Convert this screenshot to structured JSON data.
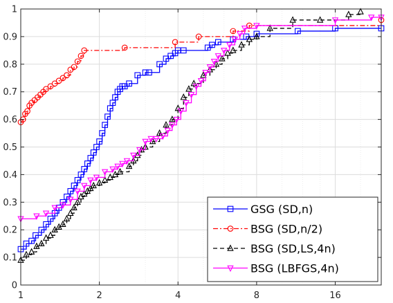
{
  "chart_data": {
    "type": "line",
    "title": "",
    "xlabel": "",
    "ylabel": "",
    "x_scale": "log2",
    "xlim": [
      1,
      24
    ],
    "ylim": [
      0,
      1
    ],
    "x_ticks": [
      1,
      2,
      4,
      8,
      16
    ],
    "x_tick_labels": [
      "1",
      "2",
      "4",
      "8",
      "16"
    ],
    "y_ticks": [
      0,
      0.1,
      0.2,
      0.3,
      0.4,
      0.5,
      0.6,
      0.7,
      0.8,
      0.9,
      1
    ],
    "y_tick_labels": [
      "0",
      "0.1",
      "0.2",
      "0.3",
      "0.4",
      "0.5",
      "0.6",
      "0.7",
      "0.8",
      "0.9",
      "1"
    ],
    "grid": true,
    "legend_position": "bottom-right",
    "series": [
      {
        "name": "GSG (SD,n)",
        "color": "#0000ff",
        "line_style": "solid",
        "marker": "square",
        "x": [
          1.0,
          1.05,
          1.1,
          1.14,
          1.2,
          1.25,
          1.3,
          1.35,
          1.4,
          1.45,
          1.5,
          1.55,
          1.6,
          1.65,
          1.7,
          1.75,
          1.8,
          1.85,
          1.9,
          1.95,
          2.0,
          2.05,
          2.1,
          2.15,
          2.2,
          2.25,
          2.3,
          2.35,
          2.4,
          2.45,
          2.5,
          2.6,
          2.8,
          3.0,
          3.1,
          3.4,
          3.6,
          3.75,
          3.9,
          4.0,
          4.2,
          5.2,
          5.4,
          5.7,
          6.5,
          7.3,
          8.0,
          11.5,
          16.0,
          24.0
        ],
        "y": [
          0.13,
          0.15,
          0.16,
          0.18,
          0.2,
          0.22,
          0.24,
          0.26,
          0.28,
          0.3,
          0.32,
          0.34,
          0.36,
          0.38,
          0.4,
          0.42,
          0.44,
          0.46,
          0.48,
          0.5,
          0.52,
          0.55,
          0.58,
          0.61,
          0.64,
          0.66,
          0.68,
          0.7,
          0.71,
          0.72,
          0.72,
          0.73,
          0.76,
          0.77,
          0.77,
          0.8,
          0.82,
          0.83,
          0.84,
          0.85,
          0.85,
          0.86,
          0.87,
          0.88,
          0.89,
          0.9,
          0.91,
          0.92,
          0.93,
          0.93
        ]
      },
      {
        "name": "BSG (SD,n/2)",
        "color": "#ff0000",
        "line_style": "dashdot",
        "marker": "circle",
        "x": [
          1.0,
          1.02,
          1.04,
          1.06,
          1.08,
          1.1,
          1.13,
          1.16,
          1.19,
          1.22,
          1.25,
          1.3,
          1.35,
          1.4,
          1.45,
          1.5,
          1.55,
          1.6,
          1.65,
          1.7,
          1.75,
          2.5,
          3.9,
          4.8,
          6.5,
          7.5,
          24.0
        ],
        "y": [
          0.59,
          0.6,
          0.62,
          0.63,
          0.65,
          0.66,
          0.67,
          0.68,
          0.69,
          0.7,
          0.71,
          0.72,
          0.73,
          0.74,
          0.75,
          0.76,
          0.78,
          0.79,
          0.81,
          0.83,
          0.85,
          0.86,
          0.88,
          0.9,
          0.92,
          0.94,
          0.96
        ]
      },
      {
        "name": "BSG (SD,LS,4n)",
        "color": "#000000",
        "line_style": "dashed",
        "marker": "triangle-up",
        "x": [
          1.0,
          1.05,
          1.1,
          1.15,
          1.2,
          1.25,
          1.3,
          1.35,
          1.4,
          1.45,
          1.5,
          1.55,
          1.6,
          1.65,
          1.7,
          1.75,
          1.8,
          1.85,
          1.9,
          2.0,
          2.1,
          2.2,
          2.3,
          2.4,
          2.6,
          2.7,
          2.8,
          2.9,
          3.0,
          3.2,
          3.4,
          3.6,
          3.8,
          4.0,
          4.2,
          4.4,
          4.6,
          5.0,
          5.3,
          5.6,
          5.9,
          6.2,
          6.5,
          7.0,
          7.5,
          8.0,
          9.0,
          11.0,
          14.0,
          18.0,
          20.0
        ],
        "y": [
          0.09,
          0.11,
          0.12,
          0.14,
          0.15,
          0.17,
          0.18,
          0.2,
          0.21,
          0.22,
          0.24,
          0.26,
          0.28,
          0.3,
          0.32,
          0.33,
          0.34,
          0.35,
          0.36,
          0.37,
          0.38,
          0.39,
          0.4,
          0.41,
          0.43,
          0.45,
          0.47,
          0.49,
          0.5,
          0.52,
          0.55,
          0.58,
          0.6,
          0.64,
          0.68,
          0.71,
          0.73,
          0.76,
          0.78,
          0.8,
          0.82,
          0.84,
          0.85,
          0.87,
          0.89,
          0.9,
          0.93,
          0.96,
          0.96,
          0.98,
          0.99
        ]
      },
      {
        "name": "BSG (LBFGS,4n)",
        "color": "#ff00ff",
        "line_style": "solid",
        "marker": "triangle-down",
        "x": [
          1.0,
          1.15,
          1.25,
          1.35,
          1.45,
          1.55,
          1.65,
          1.75,
          1.85,
          1.95,
          2.1,
          2.25,
          2.35,
          2.45,
          2.55,
          2.7,
          2.85,
          3.0,
          3.15,
          3.3,
          3.5,
          3.65,
          3.8,
          3.95,
          4.1,
          4.3,
          4.5,
          4.7,
          4.9,
          5.1,
          5.3,
          5.5,
          5.7,
          6.0,
          6.3,
          6.6,
          6.9,
          7.2,
          8.0,
          16.0,
          22.0,
          24.0
        ],
        "y": [
          0.24,
          0.25,
          0.26,
          0.28,
          0.29,
          0.31,
          0.34,
          0.36,
          0.38,
          0.39,
          0.41,
          0.42,
          0.43,
          0.44,
          0.45,
          0.47,
          0.49,
          0.52,
          0.53,
          0.53,
          0.54,
          0.56,
          0.58,
          0.6,
          0.63,
          0.66,
          0.69,
          0.72,
          0.74,
          0.77,
          0.79,
          0.81,
          0.83,
          0.85,
          0.87,
          0.89,
          0.91,
          0.93,
          0.94,
          0.96,
          0.97,
          0.97
        ]
      }
    ]
  }
}
